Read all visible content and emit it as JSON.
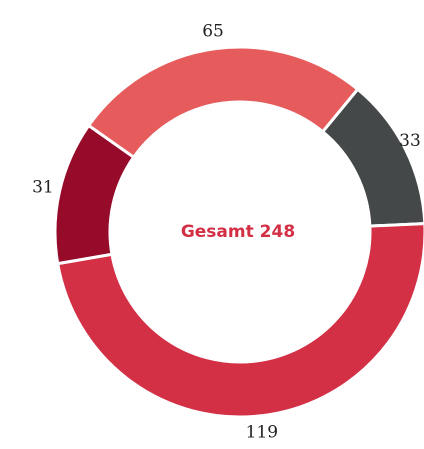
{
  "chart_data": {
    "type": "donut",
    "center_label": "Gesamt 248",
    "categories": [
      null,
      null,
      null,
      null
    ],
    "values": [
      33,
      119,
      31,
      65
    ],
    "colors": [
      "#454848",
      "#d32f45",
      "#960a2a",
      "#e65c5c"
    ]
  }
}
